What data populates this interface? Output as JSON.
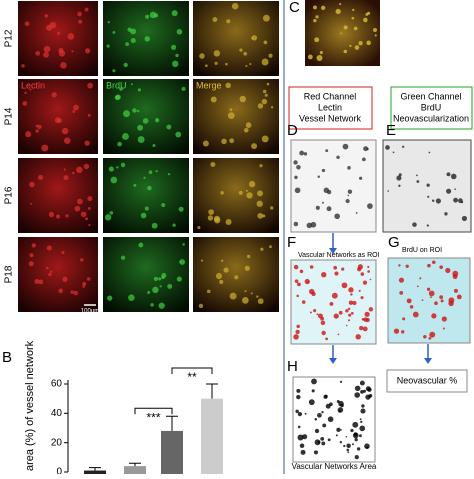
{
  "panel_a": {
    "rows": [
      "P12",
      "P14",
      "P16",
      "P18"
    ],
    "channels": [
      "Lectin",
      "BrdU",
      "Merge"
    ],
    "scale_bar": "100μm"
  },
  "panel_b": {
    "label": "B",
    "type": "bar",
    "ylabel": "BrdU area (%) of vessel network",
    "values": [
      1,
      4,
      28,
      50
    ],
    "errors": [
      2,
      2,
      10,
      10
    ],
    "colors": [
      "#222222",
      "#999999",
      "#666666",
      "#cccccc"
    ],
    "ylim": [
      0,
      60
    ],
    "yticks": [
      0,
      20,
      40,
      60
    ],
    "significance": [
      "***",
      "**"
    ]
  },
  "panel_c": {
    "label": "C",
    "red_box": [
      "Red Channel",
      "Lectin",
      "Vessel Network"
    ],
    "green_box": [
      "Green Channel",
      "BrdU",
      "Neovascularization"
    ]
  },
  "panel_d": {
    "label": "D"
  },
  "panel_e": {
    "label": "E"
  },
  "panel_f": {
    "label": "F",
    "caption": "Vascular Networks as ROI"
  },
  "panel_g": {
    "label": "G",
    "caption": "BrdU on ROI"
  },
  "panel_h": {
    "label": "H",
    "caption": "Vascular Networks Area"
  },
  "neovascular_box": "Neovascular %"
}
